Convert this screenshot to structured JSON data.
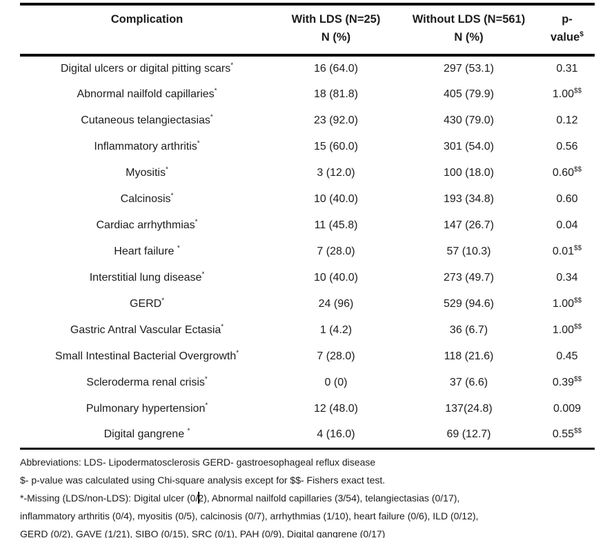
{
  "document": {
    "table": {
      "header": {
        "complication": "Complication",
        "with_lds": {
          "line1": "With LDS (N=25)",
          "line2": "N (%)"
        },
        "without_lds": {
          "line1": "Without LDS (N=561)",
          "line2": "N (%)"
        },
        "p_value": {
          "line1": "p-",
          "line2": "value",
          "superscript": "$"
        }
      },
      "rows": [
        {
          "complication": "Digital ulcers or digital pitting scars",
          "star": "*",
          "with_lds": "16 (64.0)",
          "without_lds": "297 (53.1)",
          "p": "0.31",
          "p_sup": ""
        },
        {
          "complication": "Abnormal nailfold capillaries",
          "star": "*",
          "with_lds": "18 (81.8)",
          "without_lds": "405 (79.9)",
          "p": "1.00",
          "p_sup": "$$"
        },
        {
          "complication": "Cutaneous telangiectasias",
          "star": "*",
          "with_lds": "23 (92.0)",
          "without_lds": "430 (79.0)",
          "p": "0.12",
          "p_sup": ""
        },
        {
          "complication": "Inflammatory arthritis",
          "star": "*",
          "with_lds": "15 (60.0)",
          "without_lds": "301 (54.0)",
          "p": "0.56",
          "p_sup": ""
        },
        {
          "complication": "Myositis",
          "star": "*",
          "with_lds": "3 (12.0)",
          "without_lds": "100 (18.0)",
          "p": "0.60",
          "p_sup": "$$"
        },
        {
          "complication": "Calcinosis",
          "star": "*",
          "with_lds": "10 (40.0)",
          "without_lds": "193 (34.8)",
          "p": "0.60",
          "p_sup": ""
        },
        {
          "complication": "Cardiac arrhythmias",
          "star": "*",
          "with_lds": "11 (45.8)",
          "without_lds": "147 (26.7)",
          "p": "0.04",
          "p_sup": ""
        },
        {
          "complication": "Heart failure ",
          "star": "*",
          "with_lds": "7 (28.0)",
          "without_lds": "57 (10.3)",
          "p": "0.01",
          "p_sup": "$$"
        },
        {
          "complication": "Interstitial lung disease",
          "star": "*",
          "with_lds": "10 (40.0)",
          "without_lds": "273 (49.7)",
          "p": "0.34",
          "p_sup": ""
        },
        {
          "complication": "GERD",
          "star": "*",
          "with_lds": "24 (96)",
          "without_lds": "529 (94.6)",
          "p": "1.00",
          "p_sup": "$$"
        },
        {
          "complication": "Gastric Antral Vascular Ectasia",
          "star": "*",
          "with_lds": "1 (4.2)",
          "without_lds": "36 (6.7)",
          "p": "1.00",
          "p_sup": "$$"
        },
        {
          "complication": "Small Intestinal Bacterial Overgrowth",
          "star": "*",
          "with_lds": "7 (28.0)",
          "without_lds": "118 (21.6)",
          "p": "0.45",
          "p_sup": ""
        },
        {
          "complication": "Scleroderma renal crisis",
          "star": "*",
          "with_lds": "0 (0)",
          "without_lds": "37 (6.6)",
          "p": "0.39",
          "p_sup": "$$"
        },
        {
          "complication": "Pulmonary hypertension",
          "star": "*",
          "with_lds": "12 (48.0)",
          "without_lds": "137(24.8)",
          "p": "0.009",
          "p_sup": ""
        },
        {
          "complication": "Digital gangrene ",
          "star": "*",
          "with_lds": "4 (16.0)",
          "without_lds": "69 (12.7)",
          "p": "0.55",
          "p_sup": "$$"
        }
      ]
    },
    "footnotes": {
      "abbreviations": "Abbreviations: LDS- Lipodermatosclerosis GERD- gastroesophageal reflux disease",
      "p_value_note": "$- p-value was calculated using Chi-square analysis except for $$- Fishers exact test.",
      "missing_line1_pre_caret": "*-Missing (LDS/non-LDS): Digital ulcer (0/",
      "missing_line1_post_caret": "2), Abnormal nailfold capillaries (3/54), telangiectasias (0/17),",
      "missing_line2": "inflammatory arthritis (0/4), myositis (0/5), calcinosis (0/7), arrhythmias (1/10), heart failure (0/6), ILD (0/12),",
      "missing_line3": "GERD (0/2), GAVE (1/21), SIBO (0/15), SRC (0/1), PAH (0/9), Digital gangrene (0/17)"
    },
    "colors": {
      "text": "#1c1c1c",
      "rule": "#000000",
      "background": "#ffffff"
    }
  }
}
